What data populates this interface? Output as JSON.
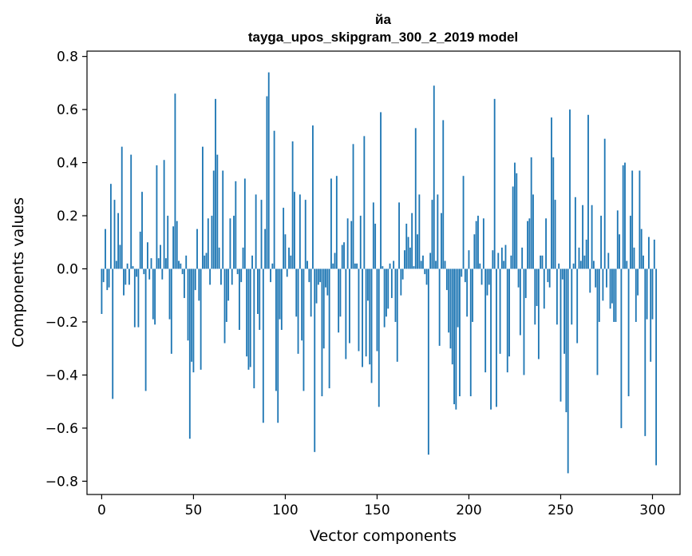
{
  "chart_data": {
    "type": "bar",
    "title_line1": "йа",
    "title_line2": "tayga_upos_skipgram_300_2_2019 model",
    "xlabel": "Vector components",
    "ylabel": "Components values",
    "xlim": [
      -8,
      315
    ],
    "ylim": [
      -0.85,
      0.82
    ],
    "xticks": [
      0,
      50,
      100,
      150,
      200,
      250,
      300
    ],
    "xtick_labels": [
      "0",
      "50",
      "100",
      "150",
      "200",
      "250",
      "300"
    ],
    "yticks": [
      -0.8,
      -0.6,
      -0.4,
      -0.2,
      0.0,
      0.2,
      0.4,
      0.6,
      0.8
    ],
    "ytick_labels": [
      "−0.8",
      "−0.6",
      "−0.4",
      "−0.2",
      "0.0",
      "0.2",
      "0.4",
      "0.6",
      "0.8"
    ],
    "bar_color": "#1f77b4",
    "values": [
      -0.17,
      -0.05,
      0.15,
      -0.08,
      -0.07,
      0.32,
      -0.49,
      0.26,
      0.03,
      0.21,
      0.09,
      0.46,
      -0.1,
      -0.06,
      0.02,
      -0.06,
      0.43,
      0.01,
      -0.22,
      -0.03,
      -0.22,
      0.14,
      0.29,
      -0.02,
      -0.46,
      0.1,
      -0.04,
      0.04,
      -0.19,
      -0.21,
      0.39,
      0.04,
      0.09,
      -0.04,
      0.41,
      0.04,
      0.2,
      -0.19,
      -0.32,
      0.16,
      0.66,
      0.18,
      0.03,
      0.02,
      -0.02,
      -0.11,
      0.05,
      -0.27,
      -0.64,
      -0.35,
      -0.39,
      -0.08,
      0.15,
      -0.12,
      -0.38,
      0.46,
      0.05,
      0.06,
      0.19,
      -0.06,
      0.2,
      0.37,
      0.64,
      0.43,
      0.08,
      -0.06,
      0.37,
      -0.28,
      -0.2,
      -0.12,
      0.19,
      -0.06,
      0.2,
      0.33,
      -0.02,
      -0.23,
      -0.05,
      0.08,
      0.34,
      -0.33,
      -0.38,
      -0.37,
      0.05,
      -0.45,
      0.28,
      -0.17,
      -0.23,
      0.26,
      -0.58,
      0.15,
      0.65,
      0.74,
      -0.05,
      0.02,
      0.52,
      -0.46,
      -0.58,
      -0.19,
      -0.23,
      0.23,
      0.13,
      -0.03,
      0.08,
      0.05,
      0.48,
      0.29,
      -0.18,
      -0.32,
      0.28,
      -0.27,
      -0.46,
      0.26,
      0.03,
      -0.05,
      -0.18,
      0.54,
      -0.69,
      -0.13,
      -0.06,
      -0.05,
      -0.48,
      -0.3,
      -0.07,
      -0.1,
      -0.45,
      0.34,
      0.02,
      0.06,
      0.35,
      -0.24,
      -0.18,
      0.09,
      0.1,
      -0.34,
      0.19,
      -0.28,
      0.18,
      0.47,
      0.02,
      0.02,
      -0.31,
      0.2,
      -0.37,
      0.5,
      -0.33,
      -0.12,
      -0.36,
      -0.43,
      0.25,
      0.17,
      -0.31,
      -0.52,
      0.59,
      0.01,
      -0.22,
      -0.18,
      -0.15,
      0.02,
      -0.11,
      0.03,
      -0.2,
      -0.35,
      0.25,
      -0.1,
      -0.04,
      0.07,
      0.17,
      0.12,
      0.08,
      0.21,
      0.01,
      0.53,
      0.13,
      0.28,
      0.03,
      0.05,
      -0.02,
      -0.06,
      -0.7,
      0.06,
      0.26,
      0.69,
      0.03,
      0.28,
      -0.29,
      0.21,
      0.56,
      0.03,
      -0.08,
      -0.24,
      -0.3,
      -0.36,
      -0.51,
      -0.53,
      -0.22,
      -0.48,
      -0.03,
      0.35,
      -0.05,
      -0.18,
      0.07,
      -0.48,
      -0.2,
      0.13,
      0.18,
      0.2,
      0.02,
      -0.06,
      0.19,
      -0.39,
      -0.1,
      -0.06,
      -0.53,
      0.07,
      0.64,
      -0.52,
      0.06,
      -0.32,
      0.08,
      0.03,
      0.09,
      -0.39,
      -0.33,
      0.05,
      0.31,
      0.4,
      0.36,
      -0.07,
      -0.25,
      0.08,
      -0.4,
      -0.11,
      0.18,
      0.19,
      0.42,
      0.28,
      -0.21,
      -0.14,
      -0.34,
      0.05,
      0.05,
      -0.15,
      0.19,
      -0.05,
      -0.07,
      0.57,
      0.42,
      0.26,
      -0.21,
      0.02,
      -0.5,
      -0.04,
      -0.32,
      -0.54,
      -0.77,
      0.6,
      -0.21,
      0.02,
      0.27,
      -0.28,
      0.08,
      0.03,
      0.24,
      0.05,
      0.11,
      0.58,
      -0.09,
      0.24,
      0.03,
      -0.07,
      -0.4,
      -0.2,
      0.2,
      -0.12,
      0.49,
      -0.07,
      0.06,
      -0.15,
      -0.13,
      -0.2,
      -0.2,
      0.22,
      0.13,
      -0.6,
      0.39,
      0.4,
      0.03,
      -0.48,
      0.2,
      0.37,
      0.08,
      -0.2,
      -0.1,
      0.37,
      0.15,
      0.05,
      -0.63,
      -0.19,
      0.12,
      -0.35,
      -0.19,
      0.11,
      -0.74
    ]
  }
}
